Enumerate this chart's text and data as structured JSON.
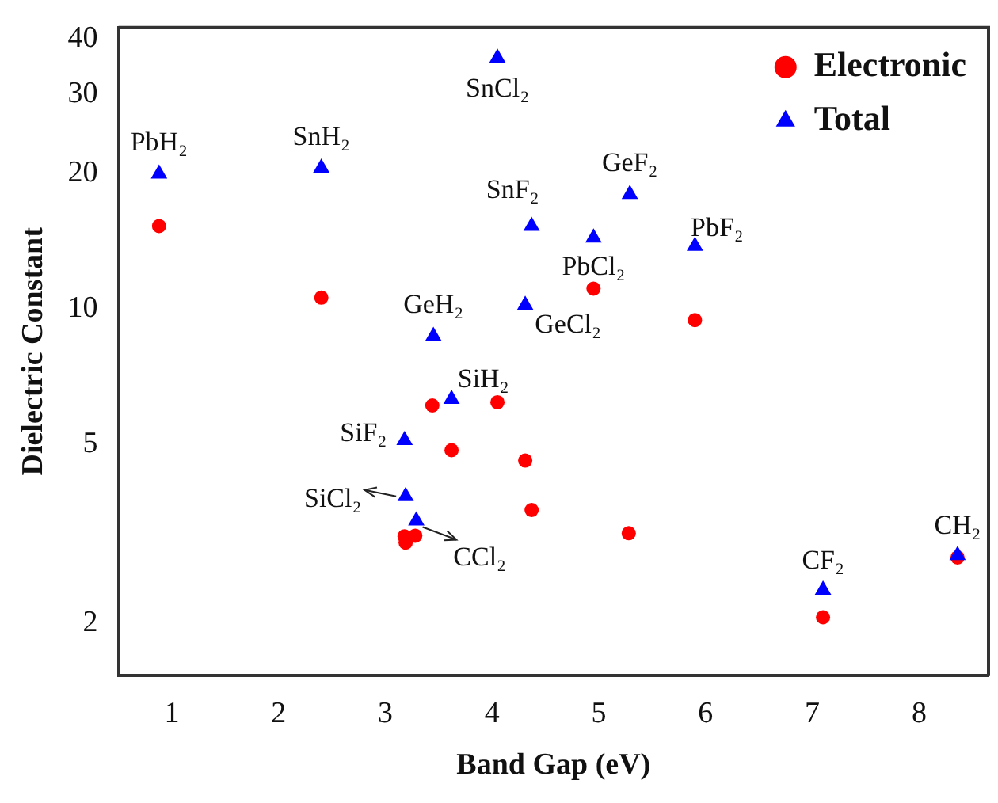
{
  "chart_data": {
    "type": "scatter",
    "xlabel": "Band Gap (eV)",
    "ylabel": "Dielectric Constant",
    "xlim": [
      0.5,
      8.65
    ],
    "xticks": [
      1,
      2,
      3,
      4,
      5,
      6,
      7,
      8
    ],
    "ylim": [
      1.53,
      42.3
    ],
    "yticks": [
      2,
      5,
      10,
      20,
      30,
      40
    ],
    "log": "y",
    "grid": false,
    "legend": "top right",
    "series": [
      {
        "name": "Electronic",
        "color": "#ff0000",
        "marker": "circle",
        "x": [
          0.88,
          2.4,
          4.05,
          3.44,
          3.62,
          3.18,
          3.19,
          3.28,
          4.37,
          4.95,
          5.28,
          5.9,
          4.31,
          7.1,
          8.36
        ],
        "values": [
          15.3,
          10.6,
          6.2,
          6.1,
          4.85,
          3.12,
          3.02,
          3.13,
          3.57,
          11.1,
          3.17,
          9.45,
          4.6,
          2.06,
          2.8
        ]
      },
      {
        "name": "Total",
        "color": "#0000ff",
        "marker": "triangle",
        "x": [
          0.88,
          2.4,
          4.05,
          3.45,
          3.62,
          3.18,
          3.19,
          3.29,
          4.37,
          4.95,
          5.29,
          5.9,
          4.31,
          7.1,
          8.36
        ],
        "values": [
          20,
          20.6,
          36.2,
          8.7,
          6.3,
          5.1,
          3.83,
          3.38,
          15.3,
          14.4,
          18.0,
          13.8,
          10.2,
          2.37,
          2.83
        ]
      }
    ],
    "annotations": [
      {
        "text": "PbH₂",
        "x": 0.88,
        "y": 20
      },
      {
        "text": "SnH₂",
        "x": 2.4,
        "y": 20.6
      },
      {
        "text": "SnCl₂",
        "x": 4.05,
        "y": 36.2
      },
      {
        "text": "GeH₂",
        "x": 3.45,
        "y": 8.7
      },
      {
        "text": "SiH₂",
        "x": 3.62,
        "y": 6.3
      },
      {
        "text": "SiF₂",
        "x": 3.18,
        "y": 5.1
      },
      {
        "text": "SiCl₂",
        "x": 3.19,
        "y": 3.83
      },
      {
        "text": "CCl₂",
        "x": 3.29,
        "y": 3.38
      },
      {
        "text": "SnF₂",
        "x": 4.37,
        "y": 15.3
      },
      {
        "text": "PbCl₂",
        "x": 4.95,
        "y": 14.4
      },
      {
        "text": "GeF₂",
        "x": 5.29,
        "y": 18.0
      },
      {
        "text": "PbF₂",
        "x": 5.9,
        "y": 13.8
      },
      {
        "text": "GeCl₂",
        "x": 4.31,
        "y": 10.2
      },
      {
        "text": "CF₂",
        "x": 7.1,
        "y": 2.37
      },
      {
        "text": "CH₂",
        "x": 8.36,
        "y": 2.83
      }
    ]
  }
}
